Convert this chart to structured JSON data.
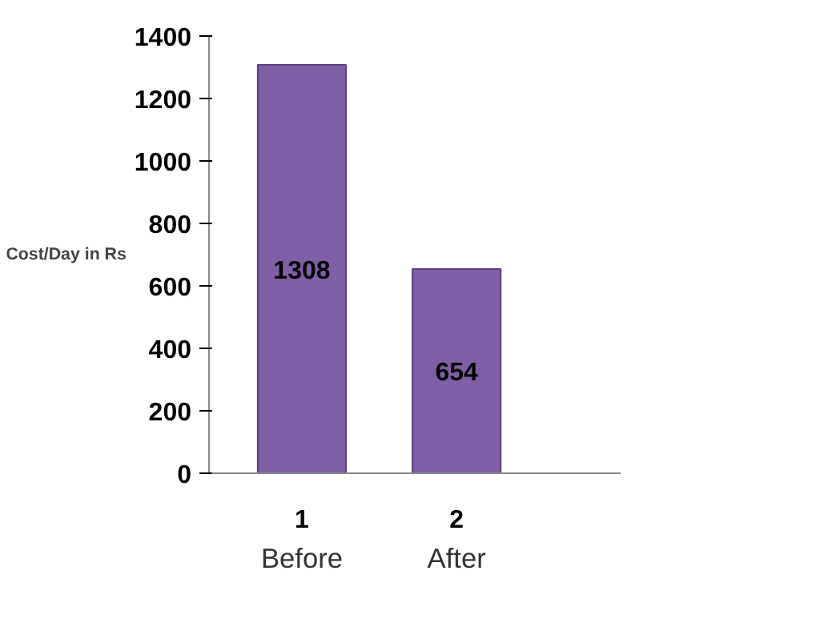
{
  "chart_data": {
    "type": "bar",
    "ylabel": "Cost/Day in Rs",
    "categories": [
      "1",
      "2"
    ],
    "values": [
      1308,
      654
    ],
    "color": "#7f5fa6",
    "data_labels": true,
    "annotations": [
      "Before",
      "After"
    ],
    "ylim": [
      0,
      1400
    ],
    "yticks": [
      0,
      200,
      400,
      600,
      800,
      1000,
      1200,
      1400
    ],
    "grid": false
  }
}
